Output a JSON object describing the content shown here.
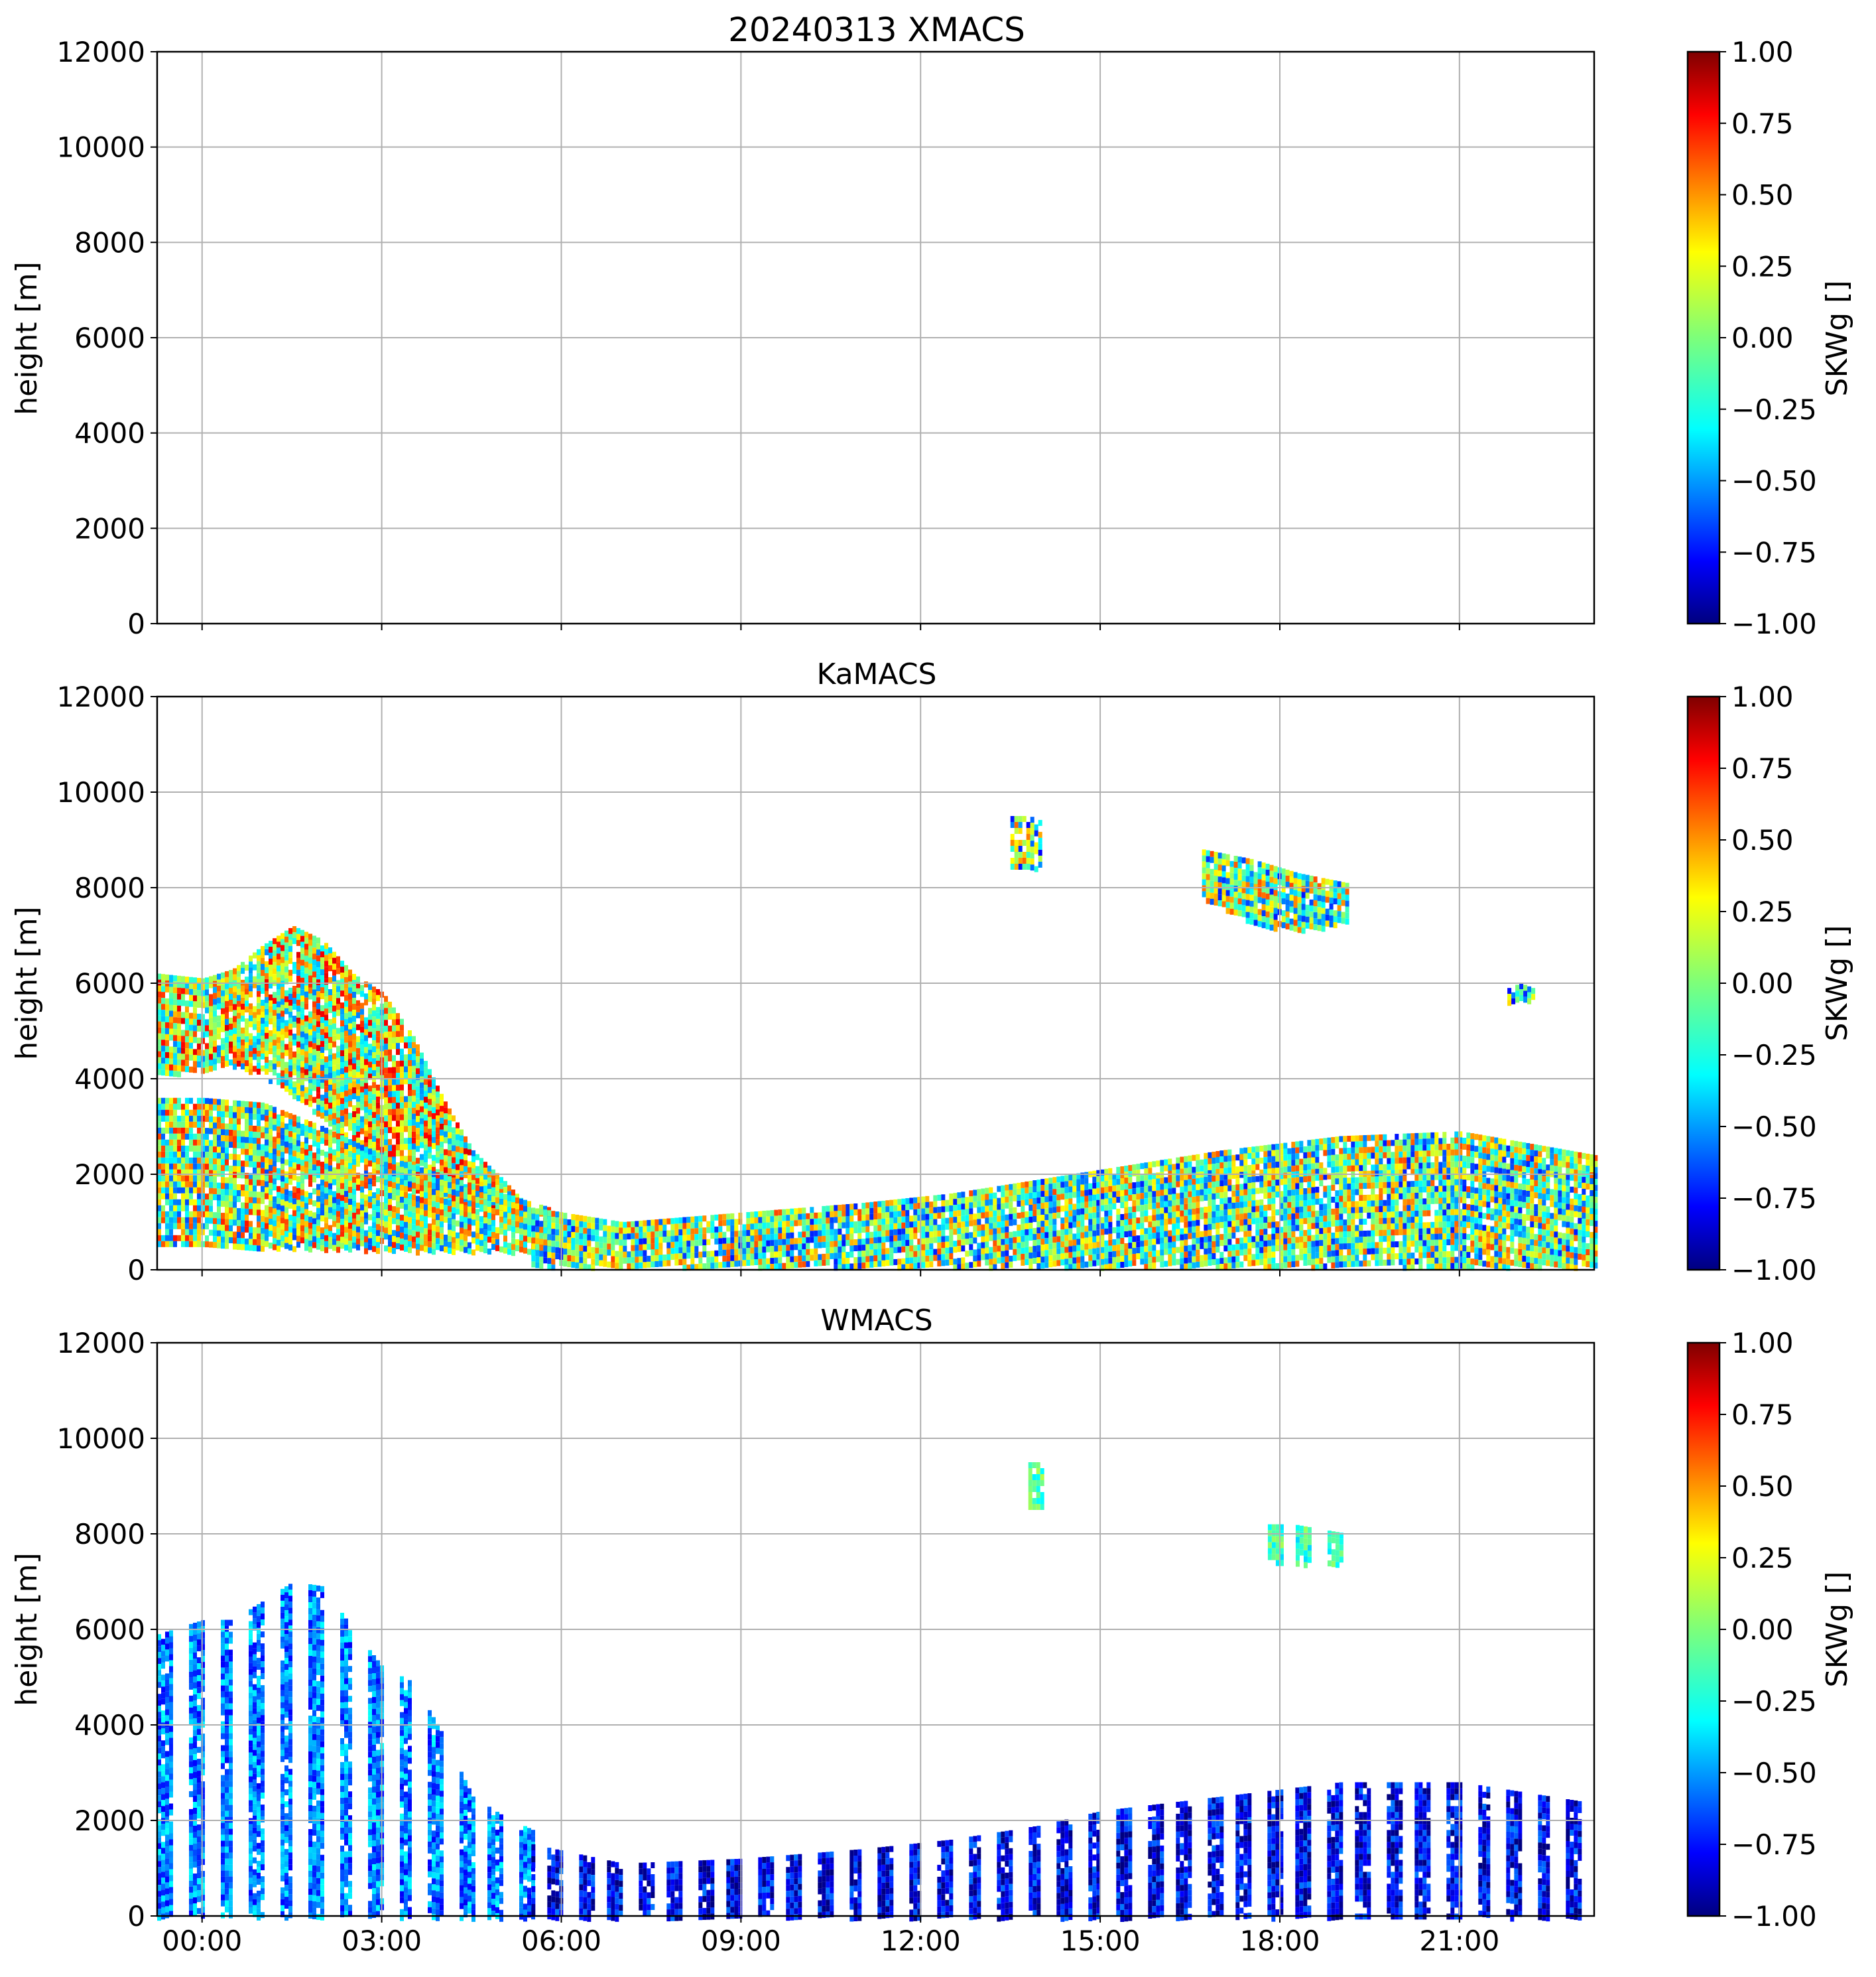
{
  "chart_data": [
    {
      "type": "heatmap",
      "title": "20240313 XMACS",
      "ylabel": "height [m]",
      "ylim": [
        0,
        12000
      ],
      "yticks": [
        "0",
        "2000",
        "4000",
        "6000",
        "8000",
        "10000",
        "12000"
      ],
      "xlim_hours": [
        -0.75,
        23.25
      ],
      "xticks": [
        "00:00",
        "03:00",
        "06:00",
        "09:00",
        "12:00",
        "15:00",
        "18:00",
        "21:00"
      ],
      "xtick_labels_shown": false,
      "grid": true,
      "colorbar": {
        "label": "SKWg []",
        "range": [
          -1.0,
          1.0
        ],
        "ticks": [
          "−1.00",
          "−0.75",
          "−0.50",
          "−0.25",
          "0.00",
          "0.25",
          "0.50",
          "0.75",
          "1.00"
        ],
        "colormap": "jet"
      },
      "regions": []
    },
    {
      "type": "heatmap",
      "title": "KaMACS",
      "ylabel": "height [m]",
      "ylim": [
        0,
        12000
      ],
      "yticks": [
        "0",
        "2000",
        "4000",
        "6000",
        "8000",
        "10000",
        "12000"
      ],
      "xlim_hours": [
        -0.75,
        23.25
      ],
      "xticks": [
        "00:00",
        "03:00",
        "06:00",
        "09:00",
        "12:00",
        "15:00",
        "18:00",
        "21:00"
      ],
      "xtick_labels_shown": false,
      "grid": true,
      "colorbar": {
        "label": "SKWg []",
        "range": [
          -1.0,
          1.0
        ],
        "ticks": [
          "−1.00",
          "−0.75",
          "−0.50",
          "−0.25",
          "0.00",
          "0.25",
          "0.50",
          "0.75",
          "1.00"
        ],
        "colormap": "jet"
      },
      "regions": [
        {
          "name": "deep-cloud-upper",
          "t": [
            -0.75,
            0.0,
            0.5,
            1.0,
            1.5,
            2.0,
            2.5,
            3.0,
            3.5,
            4.0,
            4.5,
            5.0,
            5.3
          ],
          "bottom": [
            4100,
            4200,
            4300,
            4100,
            3700,
            3200,
            2600,
            2000,
            1700,
            1500,
            1300,
            1200,
            1100
          ],
          "top": [
            6200,
            6100,
            6300,
            6800,
            7200,
            6900,
            6200,
            5800,
            4900,
            3600,
            2500,
            1900,
            1500
          ],
          "value": 0.15
        },
        {
          "name": "deep-cloud-lower",
          "t": [
            -0.75,
            0.0,
            1.0,
            2.0,
            3.0,
            4.0,
            5.0,
            5.8
          ],
          "bottom": [
            500,
            500,
            500,
            450,
            450,
            400,
            400,
            400
          ],
          "top": [
            3600,
            3600,
            3500,
            3000,
            2400,
            2000,
            1600,
            1300
          ],
          "value": 0.05
        },
        {
          "name": "boundary-layer-cloud",
          "t": [
            5.5,
            7.0,
            9.0,
            11.0,
            12.5,
            14.0,
            15.0,
            17.0,
            19.0,
            21.0,
            23.25
          ],
          "bottom": [
            100,
            100,
            100,
            100,
            100,
            100,
            100,
            100,
            100,
            100,
            100
          ],
          "top": [
            1300,
            1000,
            1200,
            1400,
            1600,
            1900,
            2100,
            2500,
            2800,
            2900,
            2400
          ],
          "value": -0.05
        },
        {
          "name": "cirrus-14h",
          "t": [
            13.5,
            13.8,
            14.0
          ],
          "bottom": [
            8400,
            8400,
            8500
          ],
          "top": [
            9500,
            9500,
            9400
          ],
          "value": -0.1
        },
        {
          "name": "cirrus-18h",
          "t": [
            16.7,
            17.5,
            18.3,
            19.1
          ],
          "bottom": [
            7800,
            7300,
            7100,
            7300
          ],
          "top": [
            8800,
            8600,
            8300,
            8100
          ],
          "value": -0.05
        },
        {
          "name": "cirrus-21h",
          "t": [
            21.8,
            22.0,
            22.2
          ],
          "bottom": [
            5600,
            5600,
            5700
          ],
          "top": [
            5900,
            6000,
            5900
          ],
          "value": -0.2
        }
      ]
    },
    {
      "type": "heatmap",
      "title": "WMACS",
      "ylabel": "height [m]",
      "ylim": [
        0,
        12000
      ],
      "yticks": [
        "0",
        "2000",
        "4000",
        "6000",
        "8000",
        "10000",
        "12000"
      ],
      "xlim_hours": [
        -0.75,
        23.25
      ],
      "xticks": [
        "00:00",
        "03:00",
        "06:00",
        "09:00",
        "12:00",
        "15:00",
        "18:00",
        "21:00"
      ],
      "xtick_labels_shown": true,
      "grid": true,
      "colorbar": {
        "label": "SKWg []",
        "range": [
          -1.0,
          1.0
        ],
        "ticks": [
          "−1.00",
          "−0.75",
          "−0.50",
          "−0.25",
          "0.00",
          "0.25",
          "0.50",
          "0.75",
          "1.00"
        ],
        "colormap": "jet"
      },
      "stripe_period_hours": 0.5,
      "stripe_duty": 0.5,
      "regions": [
        {
          "name": "deep-cloud",
          "t": [
            -0.75,
            0.0,
            0.5,
            1.0,
            1.5,
            2.0,
            2.5,
            3.0,
            3.5,
            4.0,
            4.5,
            5.0,
            5.5
          ],
          "bottom": [
            0,
            0,
            0,
            0,
            0,
            0,
            0,
            0,
            0,
            0,
            0,
            0,
            0
          ],
          "top": [
            5900,
            6200,
            6200,
            6600,
            7000,
            6900,
            6000,
            5200,
            4900,
            3800,
            2500,
            2100,
            1800
          ],
          "value": -0.55
        },
        {
          "name": "boundary-layer-cloud",
          "t": [
            5.5,
            7.0,
            9.0,
            11.0,
            12.5,
            14.0,
            15.0,
            17.0,
            19.0,
            21.0,
            23.0
          ],
          "bottom": [
            0,
            0,
            0,
            0,
            0,
            0,
            0,
            0,
            0,
            0,
            0
          ],
          "top": [
            1500,
            1100,
            1200,
            1400,
            1600,
            1900,
            2200,
            2500,
            2800,
            2800,
            2400
          ],
          "value": -0.8
        },
        {
          "name": "cirrus-14h",
          "t": [
            13.8,
            14.0,
            14.1
          ],
          "bottom": [
            8600,
            8600,
            8700
          ],
          "top": [
            9500,
            9500,
            9300
          ],
          "value": -0.1
        },
        {
          "name": "cirrus-18h",
          "t": [
            17.6,
            18.2,
            19.1
          ],
          "bottom": [
            7500,
            7400,
            7400
          ],
          "top": [
            8200,
            8200,
            8000
          ],
          "value": -0.15
        }
      ]
    }
  ]
}
